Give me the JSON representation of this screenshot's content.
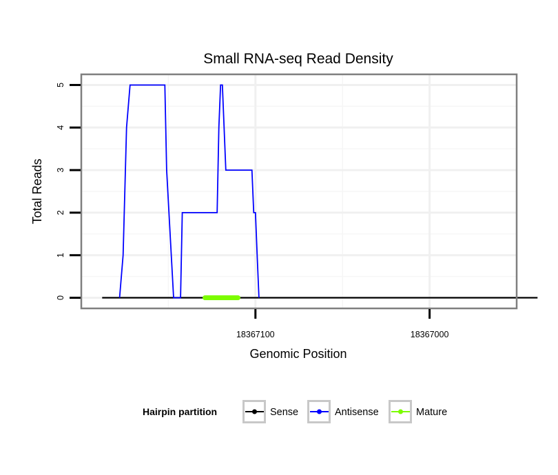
{
  "chart_data": {
    "type": "line",
    "title": "Small RNA-seq Read Density",
    "xlabel": "Genomic Position",
    "ylabel": "Total Reads",
    "x_reversed": true,
    "xlim": [
      18367200,
      18366950
    ],
    "ylim": [
      -0.25,
      5.25
    ],
    "x_ticks": [
      18367100,
      18367000
    ],
    "x_tick_labels": [
      "18367100",
      "18367000"
    ],
    "y_ticks": [
      0,
      1,
      2,
      3,
      4,
      5
    ],
    "y_tick_labels": [
      "0",
      "1",
      "2",
      "3",
      "4",
      "5"
    ],
    "grid": true,
    "legend": {
      "title": "Hairpin partition",
      "position": "bottom"
    },
    "series": [
      {
        "name": "Sense",
        "color": "#000000",
        "x": [
          18367188,
          18366938
        ],
        "y": [
          0,
          0
        ]
      },
      {
        "name": "Antisense",
        "color": "#0000ff",
        "x": [
          18367178,
          18367176,
          18367174,
          18367172,
          18367152,
          18367151,
          18367147,
          18367143,
          18367142,
          18367122,
          18367121,
          18367120,
          18367119,
          18367118,
          18367117,
          18367102,
          18367101,
          18367100,
          18367099,
          18367098
        ],
        "y": [
          0,
          1,
          4,
          5,
          5,
          3,
          0,
          0,
          2,
          2,
          4,
          5,
          5,
          4,
          3,
          3,
          2,
          2,
          1,
          0
        ]
      },
      {
        "name": "Mature",
        "color": "#7cfc00",
        "x": [
          18367129,
          18367110
        ],
        "y": [
          0,
          0
        ]
      }
    ]
  }
}
